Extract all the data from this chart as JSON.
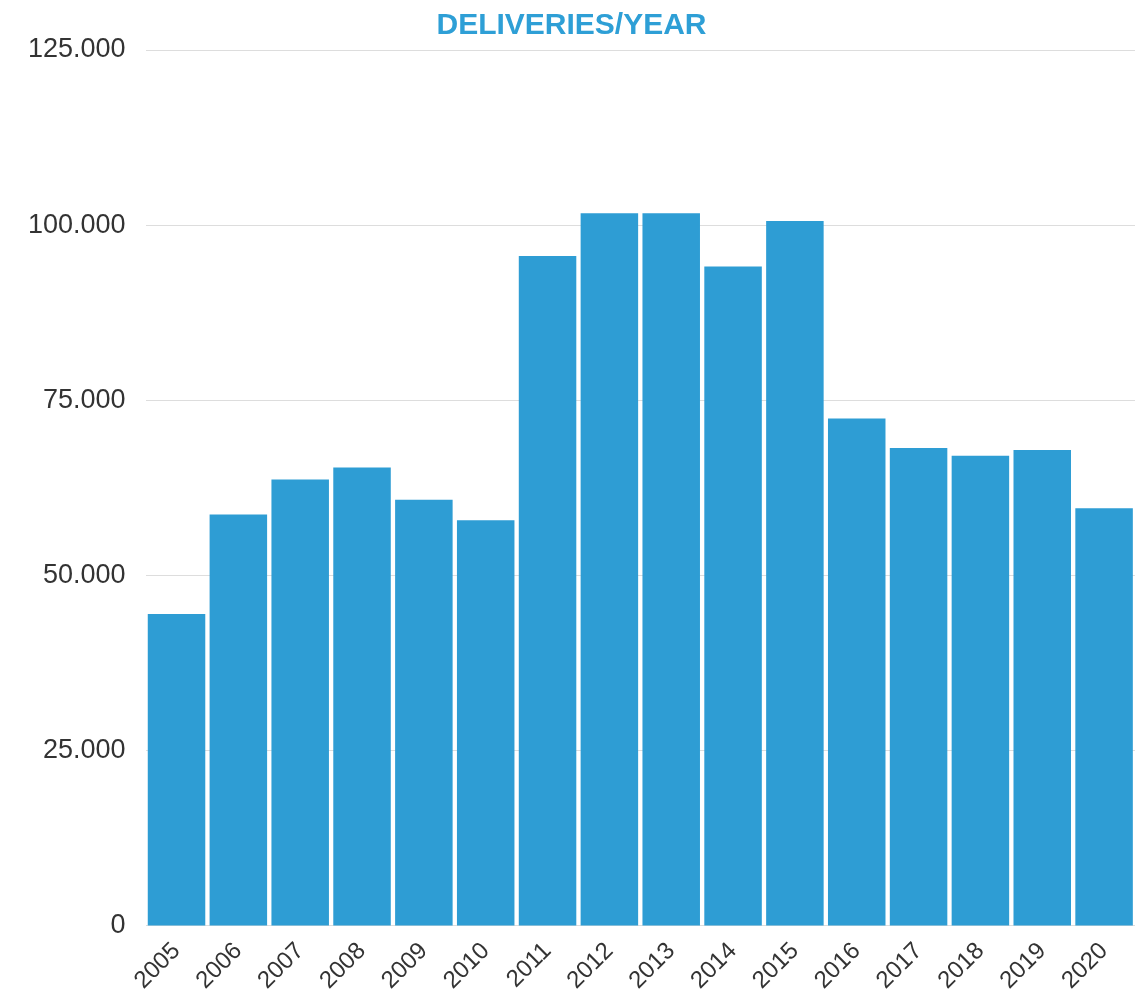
{
  "chart_data": {
    "type": "bar",
    "title": "DELIVERIES/YEAR",
    "categories": [
      "2005",
      "2006",
      "2007",
      "2008",
      "2009",
      "2010",
      "2011",
      "2012",
      "2013",
      "2014",
      "2015",
      "2016",
      "2017",
      "2018",
      "2019",
      "2020"
    ],
    "values": [
      44500,
      58700,
      63700,
      65400,
      60800,
      57900,
      95600,
      101700,
      101700,
      94100,
      100600,
      72400,
      68200,
      67100,
      67900,
      59600
    ],
    "color": "#2e9dd4",
    "ylim": [
      0,
      125000
    ],
    "yticks": [
      0,
      {
        "value": 25000,
        "label": "25.000"
      },
      {
        "value": 50000,
        "label": "50.000"
      },
      {
        "value": 75000,
        "label": "75.000"
      },
      {
        "value": 100000,
        "label": "100.000"
      },
      {
        "value": 125000,
        "label": "125.000"
      }
    ],
    "grid": "y",
    "legend": false
  }
}
